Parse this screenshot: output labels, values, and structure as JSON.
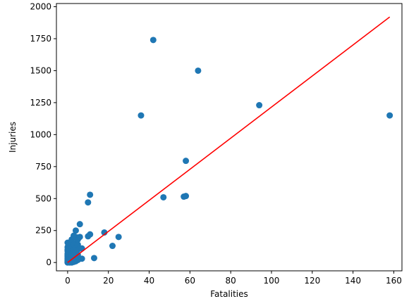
{
  "chart_data": {
    "type": "scatter",
    "title": "",
    "xlabel": "Fatalities",
    "ylabel": "Injuries",
    "xlim": [
      -5.5,
      164
    ],
    "ylim": [
      -65,
      2025
    ],
    "xticks": [
      0,
      20,
      40,
      60,
      80,
      100,
      120,
      140,
      160
    ],
    "yticks": [
      0,
      250,
      500,
      750,
      1000,
      1250,
      1500,
      1750,
      2000
    ],
    "grid": false,
    "legend": "none",
    "colors": {
      "points": "#1f77b4",
      "fit_line": "#ff0000",
      "axes": "#000000"
    },
    "series": [
      {
        "type": "scatter",
        "x": [
          0,
          0,
          0,
          0,
          0,
          0,
          0,
          0,
          0,
          0,
          0,
          0,
          0,
          0,
          1,
          1,
          1,
          1,
          1,
          1,
          1,
          1,
          1,
          1,
          1,
          1,
          2,
          2,
          2,
          2,
          2,
          2,
          2,
          2,
          2,
          2,
          3,
          3,
          3,
          3,
          3,
          3,
          3,
          3,
          4,
          4,
          4,
          4,
          4,
          4,
          4,
          5,
          5,
          5,
          5,
          5,
          6,
          6,
          6,
          6,
          7,
          7,
          10,
          10,
          11,
          11,
          13,
          18,
          22,
          25,
          36,
          42,
          47,
          57,
          58,
          58,
          64,
          94,
          158
        ],
        "y": [
          0,
          5,
          10,
          15,
          20,
          30,
          40,
          50,
          60,
          70,
          90,
          100,
          120,
          155,
          0,
          10,
          20,
          30,
          40,
          60,
          80,
          100,
          120,
          130,
          140,
          150,
          0,
          10,
          20,
          40,
          60,
          80,
          100,
          120,
          150,
          180,
          5,
          20,
          50,
          70,
          100,
          140,
          200,
          210,
          10,
          40,
          80,
          120,
          150,
          200,
          250,
          20,
          60,
          100,
          140,
          180,
          30,
          110,
          200,
          300,
          30,
          110,
          205,
          470,
          220,
          530,
          35,
          235,
          130,
          200,
          1150,
          1740,
          510,
          515,
          520,
          795,
          1500,
          1230,
          1150
        ]
      },
      {
        "type": "line",
        "x": [
          0,
          158
        ],
        "y": [
          0,
          1920
        ]
      }
    ]
  }
}
